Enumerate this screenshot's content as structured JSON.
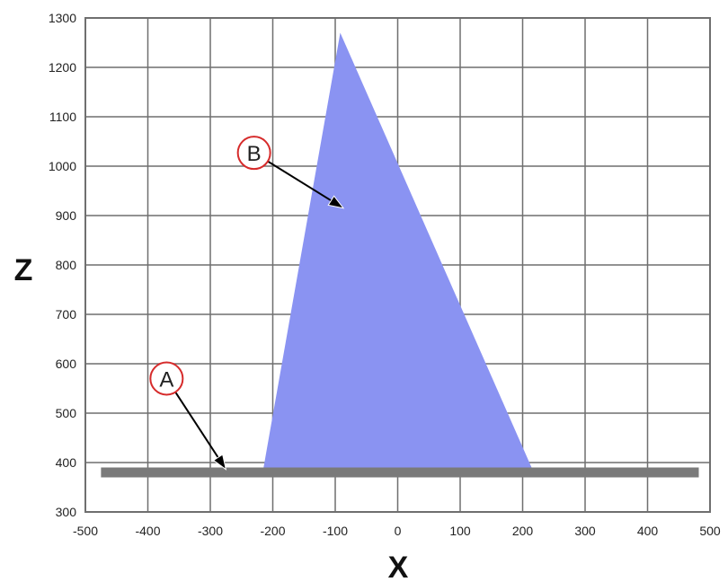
{
  "chart_data": {
    "type": "area",
    "xlabel": "X",
    "ylabel": "Z",
    "xlim": [
      -500,
      500
    ],
    "ylim": [
      300,
      1300
    ],
    "xticks": [
      -500,
      -400,
      -300,
      -200,
      -100,
      0,
      100,
      200,
      300,
      400,
      500
    ],
    "yticks": [
      300,
      400,
      500,
      600,
      700,
      800,
      900,
      1000,
      1100,
      1200,
      1300
    ],
    "xtick_labels": [
      "-500",
      "-400",
      "-300",
      "-200",
      "-100",
      "0",
      "100",
      "200",
      "300",
      "400",
      "500"
    ],
    "ytick_labels": [
      "300",
      "400",
      "500",
      "600",
      "700",
      "800",
      "900",
      "1000",
      "1100",
      "1200",
      "1300"
    ],
    "grid": true,
    "series": [
      {
        "kind": "polygon",
        "color": "#8a93f2",
        "points": [
          {
            "x": -215,
            "y": 388
          },
          {
            "x": -92,
            "y": 1270
          },
          {
            "x": 215,
            "y": 388
          }
        ]
      },
      {
        "kind": "band",
        "color": "#7a7a7a",
        "x": [
          -475,
          482
        ],
        "y": 380
      }
    ],
    "annotations": [
      {
        "label": "A",
        "circle": {
          "x": -370,
          "y": 570
        },
        "arrow_to": {
          "x": -275,
          "y": 386
        }
      },
      {
        "label": "B",
        "circle": {
          "x": -230,
          "y": 1027
        },
        "arrow_to": {
          "x": -87,
          "y": 915
        }
      }
    ],
    "annotation_color": "#d62b2b"
  }
}
